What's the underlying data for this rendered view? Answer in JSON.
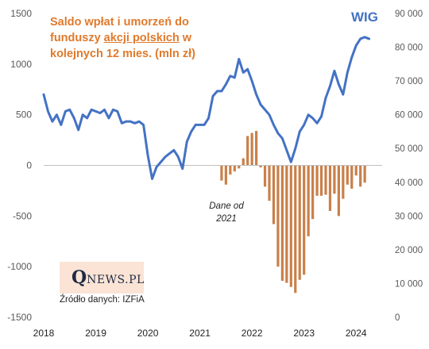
{
  "chart_data": {
    "type": "bar+line",
    "title": [
      "Saldo wpłat i umorzeń do",
      "funduszy ",
      "akcji polskich",
      " w",
      "kolejnych 12 mies. (mln zł)"
    ],
    "right_series_label": "WIG",
    "note": [
      "Dane od",
      "2021"
    ],
    "source": "Źródło danych: IZFiA",
    "logo": {
      "big": "Q",
      "small": "NEWS.PL"
    },
    "x_tick_labels": [
      "2018",
      "2019",
      "2020",
      "2021",
      "2022",
      "2023",
      "2024"
    ],
    "y_left": {
      "min": -1500,
      "max": 1500,
      "ticks": [
        -1500,
        -1000,
        -500,
        0,
        500,
        1000,
        1500
      ],
      "tick_labels": [
        "-1500",
        "-1000",
        "-500",
        "0",
        "500",
        "1000",
        "1500"
      ]
    },
    "y_right": {
      "min": 0,
      "max": 90000,
      "ticks": [
        0,
        10000,
        20000,
        30000,
        40000,
        50000,
        60000,
        70000,
        80000,
        90000
      ],
      "tick_labels": [
        "0",
        "10 000",
        "20 000",
        "30 000",
        "40 000",
        "50 000",
        "60 000",
        "70 000",
        "80 000",
        "90 000"
      ]
    },
    "x_range": [
      2018.0,
      2024.5
    ],
    "colors": {
      "title": "#e07a2c",
      "bars": "#c9804a",
      "line": "#4472c4",
      "axis_text": "#595959",
      "wig_label": "#4472c4"
    },
    "series": [
      {
        "kind": "bar",
        "axis": "left",
        "x": [
          "2021-06",
          "2021-07",
          "2021-08",
          "2021-09",
          "2021-10",
          "2021-11",
          "2021-12",
          "2022-01",
          "2022-02",
          "2022-03",
          "2022-04",
          "2022-05",
          "2022-06",
          "2022-07",
          "2022-08",
          "2022-09",
          "2022-10",
          "2022-11",
          "2022-12",
          "2023-01",
          "2023-02",
          "2023-03",
          "2023-04",
          "2023-05",
          "2023-06",
          "2023-07",
          "2023-08",
          "2023-09",
          "2023-10",
          "2023-11",
          "2023-12",
          "2024-01",
          "2024-02",
          "2024-03"
        ],
        "values": [
          -150,
          -190,
          -90,
          -60,
          -30,
          70,
          290,
          320,
          340,
          -20,
          -210,
          -350,
          -580,
          -1000,
          -1140,
          -1160,
          -1200,
          -1260,
          -1130,
          -1080,
          -700,
          -530,
          -300,
          -300,
          -290,
          -450,
          -280,
          -500,
          -330,
          -190,
          -230,
          -100,
          -210,
          -170
        ]
      },
      {
        "kind": "line",
        "axis": "right",
        "x": [
          "2018-01",
          "2018-02",
          "2018-03",
          "2018-04",
          "2018-05",
          "2018-06",
          "2018-07",
          "2018-08",
          "2018-09",
          "2018-10",
          "2018-11",
          "2018-12",
          "2019-01",
          "2019-02",
          "2019-03",
          "2019-04",
          "2019-05",
          "2019-06",
          "2019-07",
          "2019-08",
          "2019-09",
          "2019-10",
          "2019-11",
          "2019-12",
          "2020-01",
          "2020-02",
          "2020-03",
          "2020-04",
          "2020-05",
          "2020-06",
          "2020-07",
          "2020-08",
          "2020-09",
          "2020-10",
          "2020-11",
          "2020-12",
          "2021-01",
          "2021-02",
          "2021-03",
          "2021-04",
          "2021-05",
          "2021-06",
          "2021-07",
          "2021-08",
          "2021-09",
          "2021-10",
          "2021-11",
          "2021-12",
          "2022-01",
          "2022-02",
          "2022-03",
          "2022-04",
          "2022-05",
          "2022-06",
          "2022-07",
          "2022-08",
          "2022-09",
          "2022-10",
          "2022-11",
          "2022-12",
          "2023-01",
          "2023-02",
          "2023-03",
          "2023-04",
          "2023-05",
          "2023-06",
          "2023-07",
          "2023-08",
          "2023-09",
          "2023-10",
          "2023-11",
          "2023-12",
          "2024-01",
          "2024-02",
          "2024-03",
          "2024-04"
        ],
        "values": [
          66000,
          61000,
          58000,
          60000,
          57000,
          61000,
          61500,
          59000,
          55500,
          60000,
          59000,
          61500,
          61000,
          60500,
          61500,
          59000,
          61500,
          61000,
          57500,
          58000,
          58000,
          57500,
          58000,
          57000,
          48000,
          41000,
          44500,
          46000,
          47500,
          48500,
          49500,
          47500,
          44000,
          52000,
          55000,
          57000,
          57000,
          57000,
          59000,
          65500,
          67000,
          67000,
          69000,
          71500,
          71000,
          76500,
          72500,
          73500,
          70000,
          66000,
          63000,
          61500,
          60000,
          57000,
          54500,
          53000,
          49500,
          46000,
          50000,
          55000,
          57000,
          60000,
          59000,
          57500,
          59500,
          65000,
          68500,
          73000,
          69000,
          66000,
          72500,
          77000,
          80500,
          82500,
          83000,
          82500
        ]
      }
    ]
  }
}
